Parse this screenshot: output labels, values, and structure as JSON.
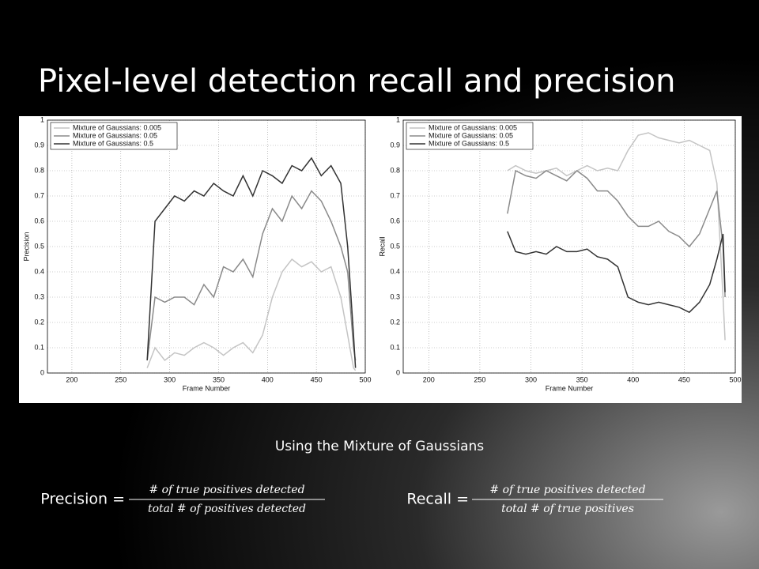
{
  "slide": {
    "title": "Pixel-level detection recall and precision",
    "caption": "Using the Mixture of Gaussians",
    "formulas": [
      {
        "label": "Precision =",
        "numerator": "# of true positives detected",
        "denominator": "total # of positives detected"
      },
      {
        "label": "Recall =",
        "numerator": "# of true positives detected",
        "denominator": "total # of true positives"
      }
    ]
  },
  "chart_data": [
    {
      "type": "line",
      "xlabel": "Frame Number",
      "ylabel": "Precision",
      "x": [
        277,
        285,
        295,
        305,
        315,
        325,
        335,
        345,
        355,
        365,
        375,
        385,
        395,
        405,
        415,
        425,
        435,
        445,
        455,
        465,
        475,
        482,
        488,
        490
      ],
      "series": [
        {
          "name": "Mixture of Gaussians: 0.005",
          "color": "#c4c4c4",
          "values": [
            0.02,
            0.1,
            0.05,
            0.08,
            0.07,
            0.1,
            0.12,
            0.1,
            0.07,
            0.1,
            0.12,
            0.08,
            0.15,
            0.3,
            0.4,
            0.45,
            0.42,
            0.44,
            0.4,
            0.42,
            0.3,
            0.15,
            0.02,
            0.01
          ]
        },
        {
          "name": "Mixture of Gaussians: 0.05",
          "color": "#8a8a8a",
          "values": [
            0.05,
            0.3,
            0.28,
            0.3,
            0.3,
            0.27,
            0.35,
            0.3,
            0.42,
            0.4,
            0.45,
            0.38,
            0.55,
            0.65,
            0.6,
            0.7,
            0.65,
            0.72,
            0.68,
            0.6,
            0.5,
            0.4,
            0.1,
            0.05
          ]
        },
        {
          "name": "Mixture of Gaussians: 0.5",
          "color": "#333333",
          "values": [
            0.05,
            0.6,
            0.65,
            0.7,
            0.68,
            0.72,
            0.7,
            0.75,
            0.72,
            0.7,
            0.78,
            0.7,
            0.8,
            0.78,
            0.75,
            0.82,
            0.8,
            0.85,
            0.78,
            0.82,
            0.75,
            0.5,
            0.15,
            0.02
          ]
        }
      ],
      "xlim": [
        175,
        500
      ],
      "xticks": [
        200,
        250,
        300,
        350,
        400,
        450,
        500
      ],
      "ylim": [
        0,
        1
      ],
      "yticks": [
        0,
        0.1,
        0.2,
        0.3,
        0.4,
        0.5,
        0.6,
        0.7,
        0.8,
        0.9,
        1
      ],
      "grid": true,
      "legend": "upper-left"
    },
    {
      "type": "line",
      "xlabel": "Frame Number",
      "ylabel": "Recall",
      "x": [
        277,
        285,
        295,
        305,
        315,
        325,
        335,
        345,
        355,
        365,
        375,
        385,
        395,
        405,
        415,
        425,
        435,
        445,
        455,
        465,
        475,
        482,
        488,
        490
      ],
      "series": [
        {
          "name": "Mixture of Gaussians: 0.005",
          "color": "#c4c4c4",
          "values": [
            0.8,
            0.82,
            0.8,
            0.79,
            0.8,
            0.81,
            0.78,
            0.8,
            0.82,
            0.8,
            0.81,
            0.8,
            0.88,
            0.94,
            0.95,
            0.93,
            0.92,
            0.91,
            0.92,
            0.9,
            0.88,
            0.75,
            0.3,
            0.13
          ]
        },
        {
          "name": "Mixture of Gaussians: 0.05",
          "color": "#8a8a8a",
          "values": [
            0.63,
            0.8,
            0.78,
            0.77,
            0.8,
            0.78,
            0.76,
            0.8,
            0.77,
            0.72,
            0.72,
            0.68,
            0.62,
            0.58,
            0.58,
            0.6,
            0.56,
            0.54,
            0.5,
            0.55,
            0.65,
            0.72,
            0.5,
            0.3
          ]
        },
        {
          "name": "Mixture of Gaussians: 0.5",
          "color": "#333333",
          "values": [
            0.56,
            0.48,
            0.47,
            0.48,
            0.47,
            0.5,
            0.48,
            0.48,
            0.49,
            0.46,
            0.45,
            0.42,
            0.3,
            0.28,
            0.27,
            0.28,
            0.27,
            0.26,
            0.24,
            0.28,
            0.35,
            0.45,
            0.55,
            0.32
          ]
        }
      ],
      "xlim": [
        175,
        500
      ],
      "xticks": [
        200,
        250,
        300,
        350,
        400,
        450,
        500
      ],
      "ylim": [
        0,
        1
      ],
      "yticks": [
        0,
        0.1,
        0.2,
        0.3,
        0.4,
        0.5,
        0.6,
        0.7,
        0.8,
        0.9,
        1
      ],
      "grid": true,
      "legend": "upper-left"
    }
  ]
}
